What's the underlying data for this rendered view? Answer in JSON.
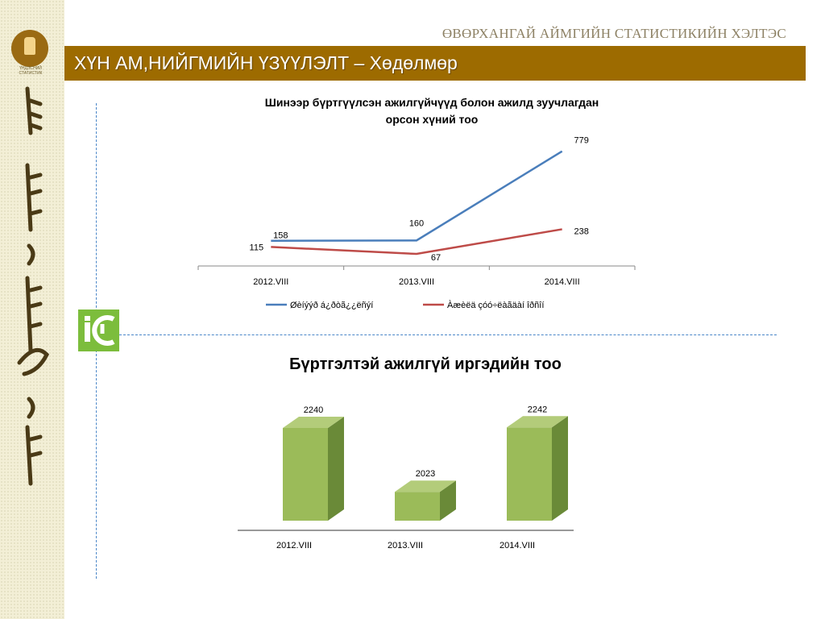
{
  "header": {
    "org_name": "ӨВӨРХАНГАЙ АЙМГИЙН СТАТИСТИКИЙН ХЭЛТЭС",
    "title": "ХҮН АМ,НИЙГМИЙН ҮЗҮҮЛЭЛТ – Хөдөлмөр",
    "logo_caption": "ҮНДЭСНИЙ СТАТИСТИК"
  },
  "colors": {
    "title_bar": "#9d6b00",
    "series1": "#4a7ebb",
    "series2": "#be4b48",
    "bar_front": "#9bbb59",
    "bar_side": "#6a8a38"
  },
  "chart_data": [
    {
      "type": "line",
      "title_line1": "Шинээр бүртгүүлсэн ажилгүйчүүд болон ажилд зуучлагдан",
      "title_line2": "орсон хүний тоо",
      "categories": [
        "2012.VIII",
        "2013.VIII",
        "2014.VIII"
      ],
      "series": [
        {
          "name": "Øèíýýð á¿ðòã¿¿ëñýí",
          "values": [
            158,
            160,
            779
          ],
          "color": "#4a7ebb"
        },
        {
          "name": "Àæèëä çóó÷ëàãäàí îðñîí",
          "values": [
            115,
            67,
            238
          ],
          "color": "#be4b48"
        }
      ],
      "legend": "bottom",
      "grid": false,
      "ylim": [
        0,
        900
      ]
    },
    {
      "type": "bar",
      "title": "Бүртгэлтэй ажилгүй иргэдийн тоо",
      "categories": [
        "2012.VIII",
        "2013.VIII",
        "2014.VIII"
      ],
      "values": [
        2240,
        2023,
        2242
      ],
      "grid": false
    }
  ]
}
